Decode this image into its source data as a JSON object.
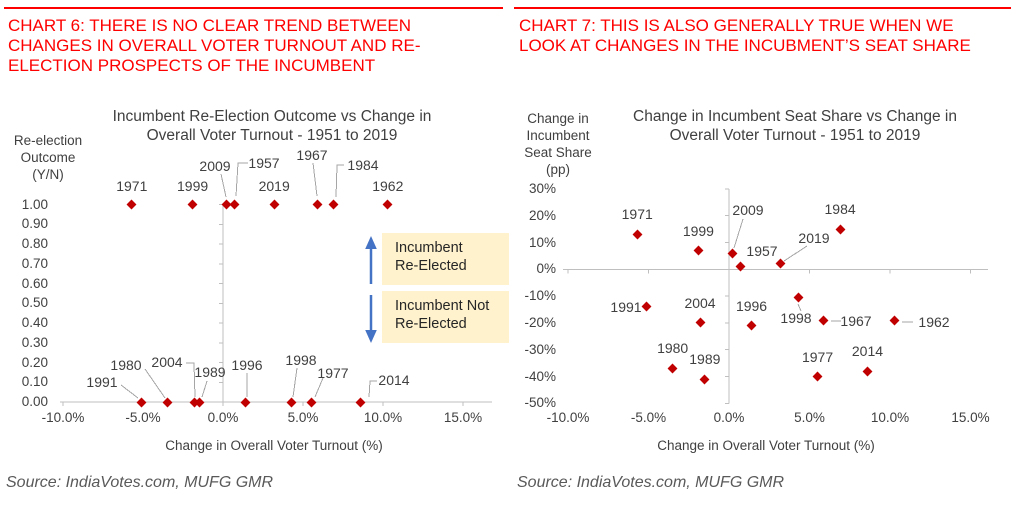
{
  "colors": {
    "heading_red": "#FE0000",
    "rule_red": "#FE0000",
    "marker_dark_red": "#C00000",
    "annotation_bg": "#FFF2CC",
    "arrow_blue": "#4472C4",
    "axis_gray": "#BFBFBF",
    "leader_gray": "#A6A6A6",
    "text_dark": "#404040",
    "source_gray": "#595959"
  },
  "panels": [
    {
      "heading_lines": [
        "CHART 6: THERE IS NO CLEAR TREND BETWEEN",
        "CHANGES IN OVERALL VOTER TURNOUT AND RE-",
        "ELECTION PROSPECTS OF THE INCUMBENT"
      ],
      "source": "Source: IndiaVotes.com, MUFG GMR",
      "chart_data": {
        "type": "scatter",
        "title": "Incumbent Re-Election Outcome vs Change in Overall Voter Turnout - 1951 to 2019",
        "title_lines": [
          "Incumbent Re-Election Outcome vs Change in",
          "Overall Voter Turnout - 1951 to 2019"
        ],
        "y_axis_title_lines": [
          "Re-election",
          "Outcome",
          "(Y/N)"
        ],
        "xlabel": "Change in Overall Voter Turnout (%)",
        "ylabel": "Re-election Outcome (Y/N)",
        "xlim": [
          -10,
          15
        ],
        "ylim": [
          0,
          1
        ],
        "grid": false,
        "legend": "none",
        "x_tick_labels": [
          "-10.0%",
          "-5.0%",
          "0.0%",
          "5.0%",
          "10.0%",
          "15.0%"
        ],
        "x_tick_values": [
          -10,
          -5,
          0,
          5,
          10,
          15
        ],
        "y_tick_labels": [
          "1.00",
          "0.90",
          "0.80",
          "0.70",
          "0.60",
          "0.50",
          "0.40",
          "0.30",
          "0.20",
          "0.10",
          "0.00"
        ],
        "y_tick_values": [
          1.0,
          0.9,
          0.8,
          0.7,
          0.6,
          0.5,
          0.4,
          0.3,
          0.2,
          0.1,
          0.0
        ],
        "marker_color": "#C00000",
        "points": [
          {
            "year": "1971",
            "x": -5.7,
            "y": 1.0
          },
          {
            "year": "1999",
            "x": -1.9,
            "y": 1.0
          },
          {
            "year": "2009",
            "x": 0.2,
            "y": 1.0
          },
          {
            "year": "1957",
            "x": 0.7,
            "y": 1.0
          },
          {
            "year": "2019",
            "x": 3.2,
            "y": 1.0
          },
          {
            "year": "1967",
            "x": 5.9,
            "y": 1.0
          },
          {
            "year": "1984",
            "x": 6.9,
            "y": 1.0
          },
          {
            "year": "1962",
            "x": 10.3,
            "y": 1.0
          },
          {
            "year": "1991",
            "x": -5.1,
            "y": 0.0
          },
          {
            "year": "1980",
            "x": -3.5,
            "y": 0.0
          },
          {
            "year": "2004",
            "x": -1.8,
            "y": 0.0
          },
          {
            "year": "1989",
            "x": -1.5,
            "y": 0.0
          },
          {
            "year": "1996",
            "x": 1.4,
            "y": 0.0
          },
          {
            "year": "1998",
            "x": 4.3,
            "y": 0.0
          },
          {
            "year": "1977",
            "x": 5.5,
            "y": 0.0
          },
          {
            "year": "2014",
            "x": 8.6,
            "y": 0.0
          }
        ],
        "annotations": [
          {
            "label_lines": [
              "Incumbent",
              "Re-Elected"
            ],
            "arrow": "up"
          },
          {
            "label_lines": [
              "Incumbent Not",
              "Re-Elected"
            ],
            "arrow": "down"
          }
        ]
      }
    },
    {
      "heading_lines": [
        "CHART 7: THIS IS ALSO GENERALLY TRUE WHEN WE",
        "LOOK AT CHANGES IN THE INCUBMENT’S SEAT SHARE"
      ],
      "source": "Source: IndiaVotes.com, MUFG GMR",
      "chart_data": {
        "type": "scatter",
        "title": "Change in Incumbent Seat Share vs Change in Overall Voter Turnout - 1951 to 2019",
        "title_lines": [
          "Change in Incumbent Seat Share vs Change in",
          "Overall Voter Turnout - 1951 to 2019"
        ],
        "y_axis_title_lines": [
          "Change in",
          "Incumbent",
          "Seat Share",
          "(pp)"
        ],
        "xlabel": "Change in Overall Voter Turnout (%)",
        "ylabel": "Change in Incumbent Seat Share (pp)",
        "xlim": [
          -10,
          15
        ],
        "ylim": [
          -50,
          30
        ],
        "grid": false,
        "legend": "none",
        "x_tick_labels": [
          "-10.0%",
          "-5.0%",
          "0.0%",
          "5.0%",
          "10.0%",
          "15.0%"
        ],
        "x_tick_values": [
          -10,
          -5,
          0,
          5,
          10,
          15
        ],
        "y_tick_labels": [
          "30%",
          "20%",
          "10%",
          "0%",
          "-10%",
          "-20%",
          "-30%",
          "-40%",
          "-50%"
        ],
        "y_tick_values": [
          30,
          20,
          10,
          0,
          -10,
          -20,
          -30,
          -40,
          -50
        ],
        "marker_color": "#C00000",
        "points": [
          {
            "year": "1971",
            "x": -5.7,
            "y": 13
          },
          {
            "year": "1999",
            "x": -1.9,
            "y": 7
          },
          {
            "year": "2009",
            "x": 0.2,
            "y": 6
          },
          {
            "year": "1957",
            "x": 0.7,
            "y": 1
          },
          {
            "year": "2019",
            "x": 3.2,
            "y": 2
          },
          {
            "year": "1984",
            "x": 6.9,
            "y": 15
          },
          {
            "year": "1991",
            "x": -5.1,
            "y": -14
          },
          {
            "year": "2004",
            "x": -1.8,
            "y": -20
          },
          {
            "year": "1996",
            "x": 1.4,
            "y": -21
          },
          {
            "year": "1998",
            "x": 4.3,
            "y": -10.5
          },
          {
            "year": "1967",
            "x": 5.9,
            "y": -19
          },
          {
            "year": "1962",
            "x": 10.3,
            "y": -19
          },
          {
            "year": "1980",
            "x": -3.5,
            "y": -37
          },
          {
            "year": "1989",
            "x": -1.5,
            "y": -41
          },
          {
            "year": "1977",
            "x": 5.5,
            "y": -40
          },
          {
            "year": "2014",
            "x": 8.6,
            "y": -38
          }
        ],
        "annotations": []
      }
    }
  ]
}
